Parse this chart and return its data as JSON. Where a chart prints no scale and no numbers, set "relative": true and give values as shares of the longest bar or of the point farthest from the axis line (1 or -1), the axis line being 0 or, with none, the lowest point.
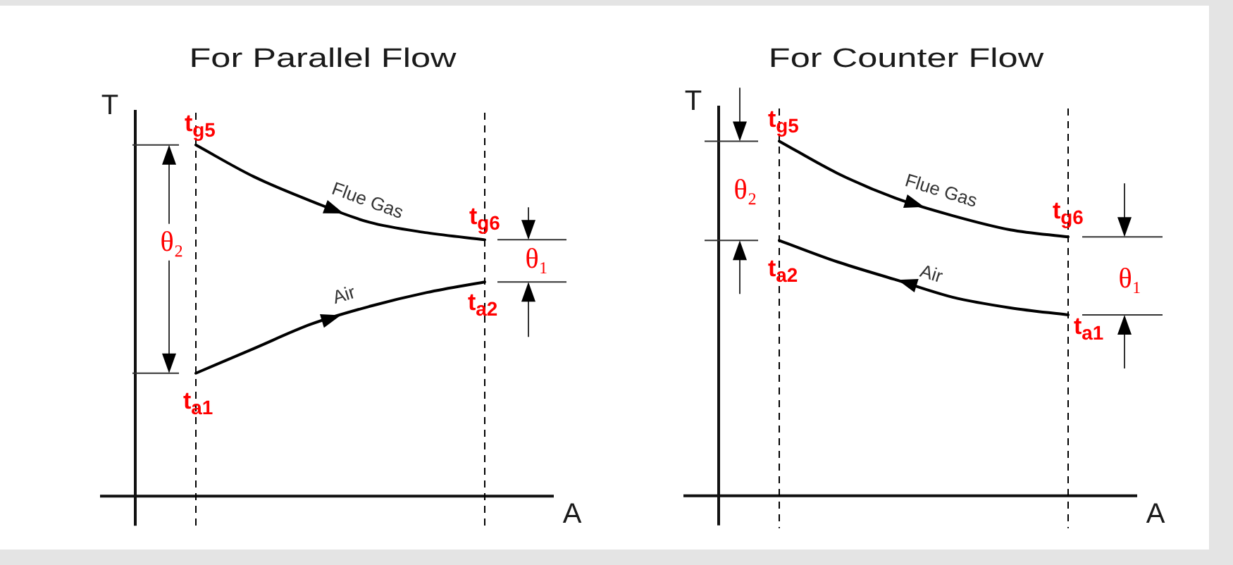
{
  "chart_data": [
    {
      "type": "line",
      "title": "For Parallel Flow",
      "xlabel": "A",
      "ylabel": "T",
      "relative": true,
      "categories": [
        null,
        null,
        null,
        null,
        null,
        null,
        null,
        null
      ],
      "series": [
        {
          "name": "Flue Gas",
          "color": "#000000",
          "values": [
            null,
            1,
            0.91,
            0.84,
            0.78,
            0.75,
            0.73,
            null
          ]
        },
        {
          "name": "Air",
          "color": "#000000",
          "values": [
            null,
            0.35,
            0.42,
            0.49,
            0.54,
            0.58,
            0.61,
            null
          ]
        }
      ],
      "annotations": [
        {
          "text": "t$_{g5}$",
          "y": 1
        },
        {
          "text": "t$_{g6}$",
          "y": 0.73
        },
        {
          "text": "t$_{a1}$",
          "y": 0.35
        },
        {
          "text": "t$_{a2}$",
          "y": 0.61
        },
        "θ₂",
        "θ₁"
      ]
    },
    {
      "type": "line",
      "title": "For Counter Flow",
      "xlabel": "A",
      "ylabel": "T",
      "relative": true,
      "categories": [
        null,
        null,
        null,
        null,
        null,
        null,
        null,
        null
      ],
      "series": [
        {
          "name": "Flue Gas",
          "color": "#000000",
          "values": [
            null,
            1,
            0.91,
            0.84,
            0.79,
            0.75,
            0.73,
            null
          ]
        },
        {
          "name": "Air",
          "color": "#000000",
          "values": [
            null,
            0.72,
            0.66,
            0.61,
            0.56,
            0.53,
            0.51,
            null
          ]
        }
      ],
      "annotations": [
        {
          "text": "t$_{g5}$",
          "y": 1
        },
        {
          "text": "t$_{g6}$",
          "y": 0.73
        },
        {
          "text": "t$_{a2}$",
          "y": 0.72
        },
        "t$_{a1}$",
        "θ₂",
        "θ₁"
      ]
    }
  ]
}
